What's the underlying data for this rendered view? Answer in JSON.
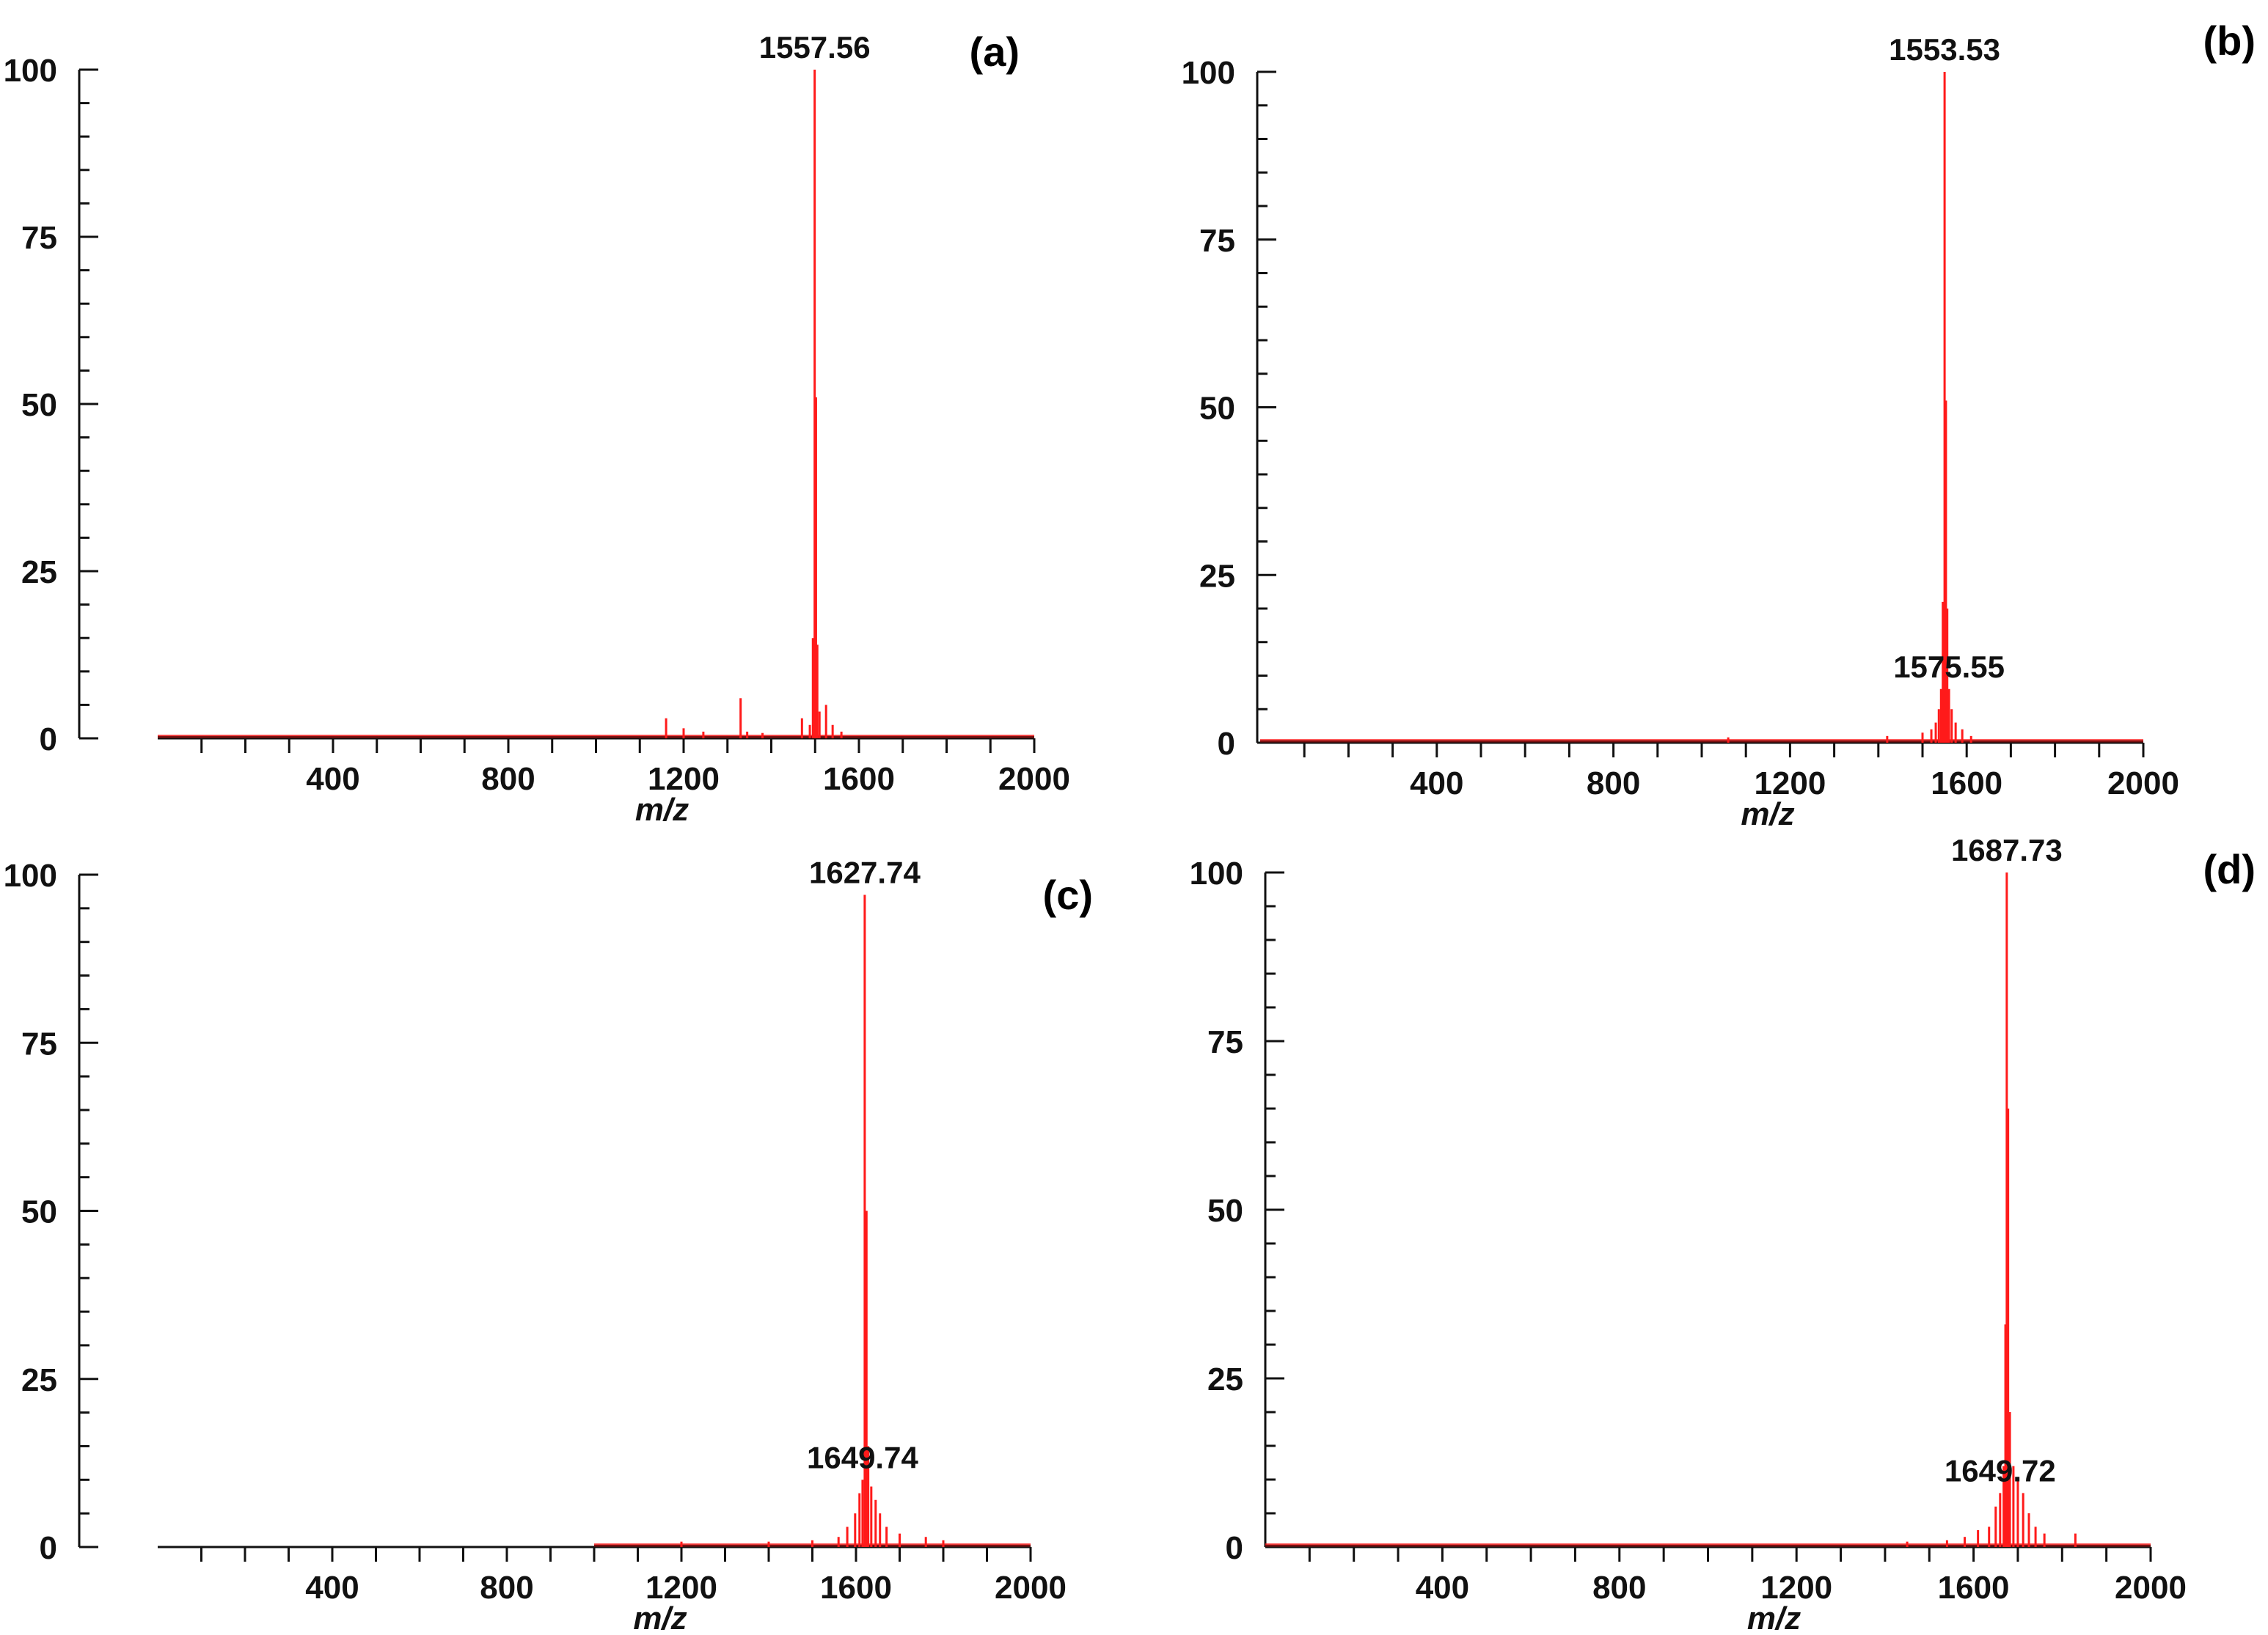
{
  "colors": {
    "spectrum": "#ff1a1a",
    "axis": "#111111",
    "baseline": "#7a1010"
  },
  "chart_data": [
    {
      "type": "line",
      "panel_label": "(a)",
      "title": "",
      "xlabel": "m/z",
      "ylabel": "",
      "xlim": [
        0,
        2000
      ],
      "ylim": [
        0,
        100
      ],
      "x_ticks": [
        400,
        800,
        1200,
        1600,
        2000
      ],
      "y_ticks": [
        0,
        25,
        50,
        75,
        100
      ],
      "baseline_start": 0,
      "peaks": [
        {
          "x": 1160,
          "y": 3
        },
        {
          "x": 1200,
          "y": 1.5
        },
        {
          "x": 1245,
          "y": 1
        },
        {
          "x": 1330,
          "y": 6
        },
        {
          "x": 1345,
          "y": 1
        },
        {
          "x": 1380,
          "y": 0.8
        },
        {
          "x": 1470,
          "y": 3
        },
        {
          "x": 1488,
          "y": 2
        },
        {
          "x": 1495,
          "y": 15
        },
        {
          "x": 1499,
          "y": 100
        },
        {
          "x": 1502,
          "y": 51
        },
        {
          "x": 1505,
          "y": 14
        },
        {
          "x": 1510,
          "y": 4
        },
        {
          "x": 1525,
          "y": 5
        },
        {
          "x": 1540,
          "y": 2
        },
        {
          "x": 1560,
          "y": 1
        }
      ],
      "annotations": [
        {
          "text": "1557.56",
          "x": 1499,
          "y": 100
        }
      ]
    },
    {
      "type": "line",
      "panel_label": "(b)",
      "title": "",
      "xlabel": "m/z",
      "ylabel": "",
      "xlim": [
        0,
        2000
      ],
      "ylim": [
        0,
        100
      ],
      "x_ticks": [
        400,
        800,
        1200,
        1600,
        2000
      ],
      "y_ticks": [
        0,
        25,
        50,
        75,
        100
      ],
      "baseline_start": 0,
      "peaks": [
        {
          "x": 1060,
          "y": 0.8
        },
        {
          "x": 1420,
          "y": 1
        },
        {
          "x": 1500,
          "y": 1.5
        },
        {
          "x": 1520,
          "y": 2
        },
        {
          "x": 1530,
          "y": 3
        },
        {
          "x": 1537,
          "y": 5
        },
        {
          "x": 1542,
          "y": 8
        },
        {
          "x": 1546,
          "y": 21
        },
        {
          "x": 1550,
          "y": 100
        },
        {
          "x": 1553,
          "y": 51
        },
        {
          "x": 1556,
          "y": 20
        },
        {
          "x": 1560,
          "y": 8
        },
        {
          "x": 1566,
          "y": 5
        },
        {
          "x": 1575,
          "y": 3
        },
        {
          "x": 1590,
          "y": 2
        },
        {
          "x": 1610,
          "y": 1
        }
      ],
      "annotations": [
        {
          "text": "1553.53",
          "x": 1550,
          "y": 100
        },
        {
          "text": "1575.55",
          "x": 1560,
          "y": 8
        }
      ]
    },
    {
      "type": "line",
      "panel_label": "(c)",
      "title": "",
      "xlabel": "m/z",
      "ylabel": "",
      "xlim": [
        0,
        2000
      ],
      "ylim": [
        0,
        100
      ],
      "x_ticks": [
        400,
        800,
        1200,
        1600,
        2000
      ],
      "y_ticks": [
        0,
        25,
        50,
        75,
        100
      ],
      "baseline_start": 1000,
      "peaks": [
        {
          "x": 1200,
          "y": 0.8
        },
        {
          "x": 1400,
          "y": 0.8
        },
        {
          "x": 1500,
          "y": 1
        },
        {
          "x": 1560,
          "y": 1.5
        },
        {
          "x": 1580,
          "y": 3
        },
        {
          "x": 1598,
          "y": 5
        },
        {
          "x": 1608,
          "y": 8
        },
        {
          "x": 1615,
          "y": 10
        },
        {
          "x": 1620,
          "y": 97
        },
        {
          "x": 1624,
          "y": 50
        },
        {
          "x": 1628,
          "y": 15
        },
        {
          "x": 1635,
          "y": 9
        },
        {
          "x": 1645,
          "y": 7
        },
        {
          "x": 1655,
          "y": 5
        },
        {
          "x": 1670,
          "y": 3
        },
        {
          "x": 1700,
          "y": 2
        },
        {
          "x": 1760,
          "y": 1.5
        },
        {
          "x": 1800,
          "y": 1
        }
      ],
      "annotations": [
        {
          "text": "1627.74",
          "x": 1620,
          "y": 97
        },
        {
          "text": "1649.74",
          "x": 1615,
          "y": 10
        }
      ]
    },
    {
      "type": "line",
      "panel_label": "(d)",
      "title": "",
      "xlabel": "m/z",
      "ylabel": "",
      "xlim": [
        0,
        2000
      ],
      "ylim": [
        0,
        100
      ],
      "x_ticks": [
        400,
        800,
        1200,
        1600,
        2000
      ],
      "y_ticks": [
        0,
        25,
        50,
        75,
        100
      ],
      "baseline_start": 0,
      "peaks": [
        {
          "x": 1450,
          "y": 0.8
        },
        {
          "x": 1540,
          "y": 1
        },
        {
          "x": 1580,
          "y": 1.5
        },
        {
          "x": 1610,
          "y": 2.5
        },
        {
          "x": 1635,
          "y": 3
        },
        {
          "x": 1650,
          "y": 6
        },
        {
          "x": 1660,
          "y": 8
        },
        {
          "x": 1668,
          "y": 12
        },
        {
          "x": 1672,
          "y": 33
        },
        {
          "x": 1675,
          "y": 100
        },
        {
          "x": 1678,
          "y": 65
        },
        {
          "x": 1682,
          "y": 20
        },
        {
          "x": 1690,
          "y": 12
        },
        {
          "x": 1700,
          "y": 10
        },
        {
          "x": 1712,
          "y": 8
        },
        {
          "x": 1725,
          "y": 5
        },
        {
          "x": 1740,
          "y": 3
        },
        {
          "x": 1760,
          "y": 2
        },
        {
          "x": 1830,
          "y": 2
        }
      ],
      "annotations": [
        {
          "text": "1687.73",
          "x": 1675,
          "y": 100
        },
        {
          "text": "1649.72",
          "x": 1660,
          "y": 8
        }
      ]
    }
  ]
}
